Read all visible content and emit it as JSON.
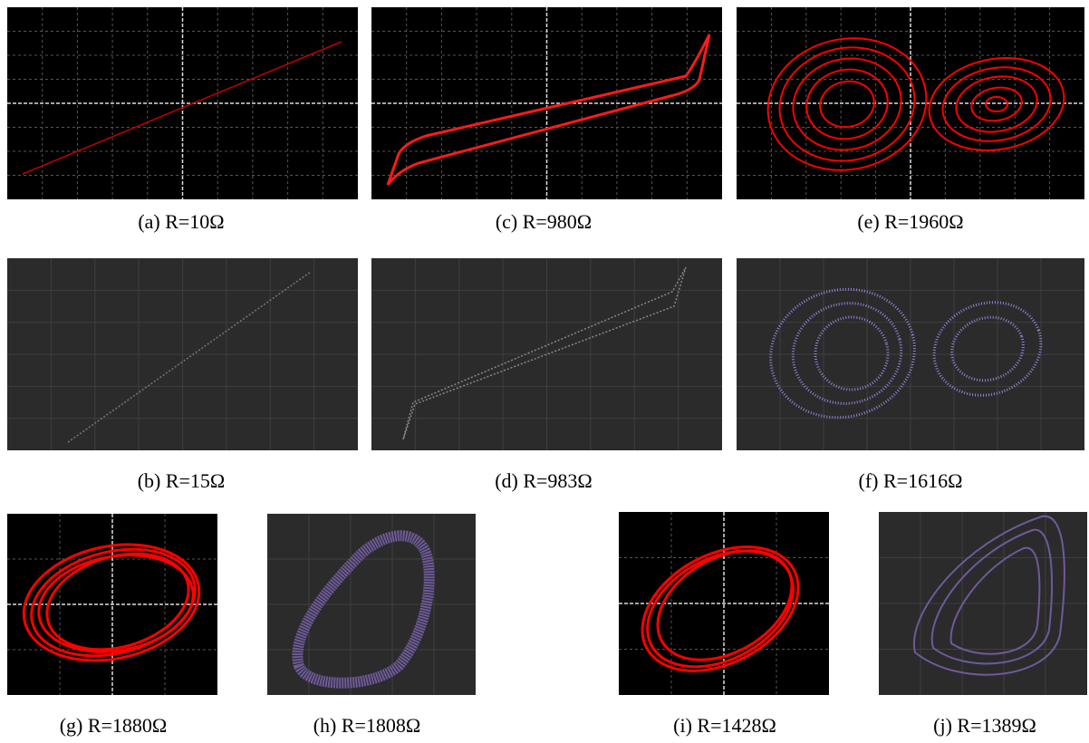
{
  "panels": [
    {
      "caption": "(a) R=10Ω"
    },
    {
      "caption": "(c) R=980Ω"
    },
    {
      "caption": "(e) R=1960Ω"
    },
    {
      "caption": "(b) R=15Ω"
    },
    {
      "caption": "(d) R=983Ω"
    },
    {
      "caption": "(f) R=1616Ω"
    },
    {
      "caption": "(g) R=1880Ω"
    },
    {
      "caption": "(h) R=1808Ω"
    },
    {
      "caption": "(i) R=1428Ω"
    },
    {
      "caption": "(j) R=1389Ω"
    }
  ]
}
